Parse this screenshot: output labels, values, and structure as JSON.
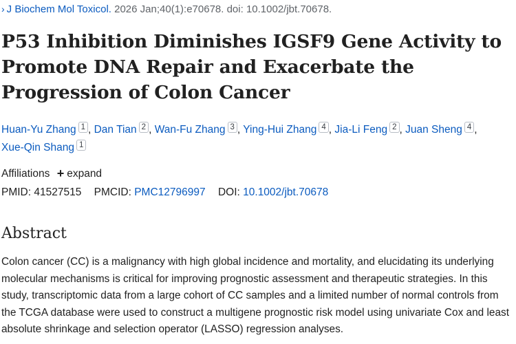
{
  "citation": {
    "journal": "J Biochem Mol Toxicol.",
    "details": "2026 Jan;40(1):e70678. doi: 10.1002/jbt.70678."
  },
  "title": "P53 Inhibition Diminishes IGSF9 Gene Activity to Promote DNA Repair and Exacerbate the Progression of Colon Cancer",
  "authors": [
    {
      "name": "Huan-Yu Zhang",
      "aff": "1"
    },
    {
      "name": "Dan Tian",
      "aff": "2"
    },
    {
      "name": "Wan-Fu Zhang",
      "aff": "3"
    },
    {
      "name": "Ying-Hui Zhang",
      "aff": "4"
    },
    {
      "name": "Jia-Li Feng",
      "aff": "2"
    },
    {
      "name": "Juan Sheng",
      "aff": "4"
    },
    {
      "name": "Xue-Qin Shang",
      "aff": "1"
    }
  ],
  "affiliations": {
    "label": "Affiliations",
    "expand_label": "expand"
  },
  "ids": {
    "pmid_label": "PMID:",
    "pmid": "41527515",
    "pmcid_label": "PMCID:",
    "pmcid": "PMC12796997",
    "doi_label": "DOI:",
    "doi": "10.1002/jbt.70678"
  },
  "abstract": {
    "heading": "Abstract",
    "text": "Colon cancer (CC) is a malignancy with high global incidence and mortality, and elucidating its underlying molecular mechanisms is critical for improving prognostic assessment and therapeutic strategies. In this study, transcriptomic data from a large cohort of CC samples and a limited number of normal controls from the TCGA database were used to construct a multigene prognostic risk model using univariate Cox and least absolute shrinkage and selection operator (LASSO) regression analyses."
  },
  "colors": {
    "link": "#0b5bbf",
    "text": "#212121"
  }
}
